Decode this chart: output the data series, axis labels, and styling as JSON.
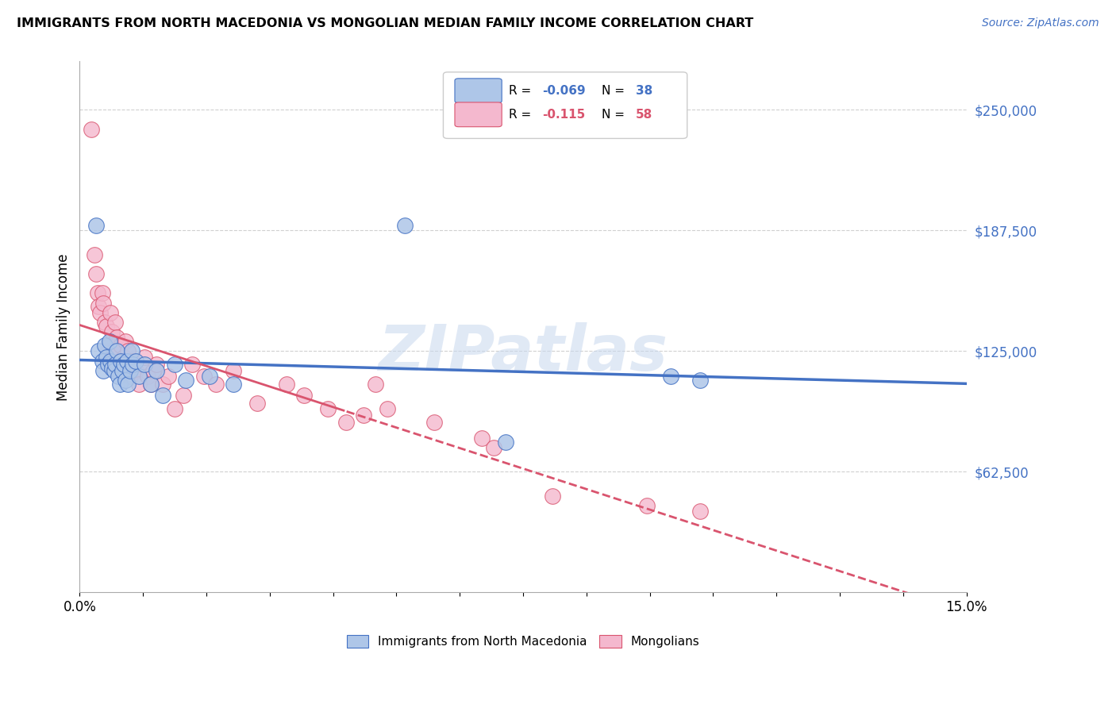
{
  "title": "IMMIGRANTS FROM NORTH MACEDONIA VS MONGOLIAN MEDIAN FAMILY INCOME CORRELATION CHART",
  "source": "Source: ZipAtlas.com",
  "ylabel": "Median Family Income",
  "yticks": [
    62500,
    125000,
    187500,
    250000
  ],
  "ytick_labels": [
    "$62,500",
    "$125,000",
    "$187,500",
    "$250,000"
  ],
  "xlim": [
    0.0,
    0.15
  ],
  "ylim": [
    0,
    275000
  ],
  "watermark": "ZIPatlas",
  "bottom_legend_blue": "Immigrants from North Macedonia",
  "bottom_legend_pink": "Mongolians",
  "blue_color": "#aec6e8",
  "pink_color": "#f4b8ce",
  "blue_line_color": "#4472c4",
  "pink_line_color": "#d9546e",
  "grid_color": "#d0d0d0",
  "blue_r": "-0.069",
  "blue_n": "38",
  "pink_r": "-0.115",
  "pink_n": "58",
  "blue_scatter_x": [
    0.0028,
    0.0032,
    0.0038,
    0.004,
    0.0042,
    0.0045,
    0.0048,
    0.005,
    0.0052,
    0.0055,
    0.0058,
    0.006,
    0.0062,
    0.0065,
    0.0068,
    0.007,
    0.0072,
    0.0075,
    0.0078,
    0.008,
    0.0082,
    0.0085,
    0.0088,
    0.009,
    0.0095,
    0.01,
    0.011,
    0.012,
    0.013,
    0.014,
    0.016,
    0.018,
    0.022,
    0.026,
    0.055,
    0.072,
    0.1,
    0.105
  ],
  "blue_scatter_y": [
    190000,
    125000,
    120000,
    115000,
    128000,
    122000,
    118000,
    130000,
    120000,
    116000,
    115000,
    118000,
    125000,
    112000,
    108000,
    120000,
    115000,
    118000,
    110000,
    120000,
    108000,
    115000,
    125000,
    118000,
    120000,
    112000,
    118000,
    108000,
    115000,
    102000,
    118000,
    110000,
    112000,
    108000,
    190000,
    78000,
    112000,
    110000
  ],
  "pink_scatter_x": [
    0.002,
    0.0025,
    0.0028,
    0.003,
    0.0032,
    0.0035,
    0.0038,
    0.004,
    0.0042,
    0.0045,
    0.0048,
    0.005,
    0.0052,
    0.0055,
    0.0058,
    0.006,
    0.0062,
    0.0065,
    0.0068,
    0.007,
    0.0072,
    0.0075,
    0.0078,
    0.008,
    0.0082,
    0.0085,
    0.0088,
    0.009,
    0.0095,
    0.01,
    0.0105,
    0.011,
    0.0115,
    0.012,
    0.0125,
    0.013,
    0.014,
    0.015,
    0.016,
    0.0175,
    0.019,
    0.021,
    0.023,
    0.026,
    0.03,
    0.035,
    0.038,
    0.042,
    0.045,
    0.048,
    0.05,
    0.052,
    0.06,
    0.068,
    0.07,
    0.08,
    0.096,
    0.105
  ],
  "pink_scatter_y": [
    240000,
    175000,
    165000,
    155000,
    148000,
    145000,
    155000,
    150000,
    140000,
    138000,
    125000,
    128000,
    145000,
    135000,
    125000,
    140000,
    132000,
    125000,
    120000,
    128000,
    115000,
    122000,
    130000,
    118000,
    125000,
    112000,
    118000,
    120000,
    115000,
    108000,
    118000,
    122000,
    112000,
    108000,
    115000,
    118000,
    108000,
    112000,
    95000,
    102000,
    118000,
    112000,
    108000,
    115000,
    98000,
    108000,
    102000,
    95000,
    88000,
    92000,
    108000,
    95000,
    88000,
    80000,
    75000,
    50000,
    45000,
    42000
  ]
}
